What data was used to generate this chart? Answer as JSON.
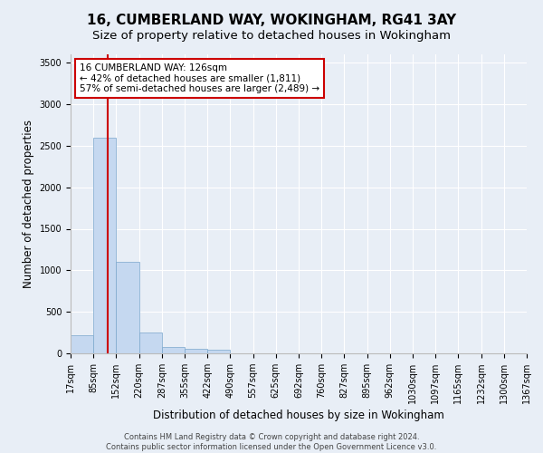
{
  "title_line1": "16, CUMBERLAND WAY, WOKINGHAM, RG41 3AY",
  "title_line2": "Size of property relative to detached houses in Wokingham",
  "xlabel": "Distribution of detached houses by size in Wokingham",
  "ylabel": "Number of detached properties",
  "footnote1": "Contains HM Land Registry data © Crown copyright and database right 2024.",
  "footnote2": "Contains public sector information licensed under the Open Government Licence v3.0.",
  "bar_values": [
    220,
    2600,
    1100,
    250,
    80,
    50,
    40,
    5,
    3,
    2,
    1,
    1,
    0,
    0,
    0,
    0,
    0,
    0,
    0,
    0
  ],
  "bin_labels": [
    "17sqm",
    "85sqm",
    "152sqm",
    "220sqm",
    "287sqm",
    "355sqm",
    "422sqm",
    "490sqm",
    "557sqm",
    "625sqm",
    "692sqm",
    "760sqm",
    "827sqm",
    "895sqm",
    "962sqm",
    "1030sqm",
    "1097sqm",
    "1165sqm",
    "1232sqm",
    "1300sqm",
    "1367sqm"
  ],
  "bar_color": "#c5d8f0",
  "bar_edge_color": "#7ba7cc",
  "annotation_text_line1": "16 CUMBERLAND WAY: 126sqm",
  "annotation_text_line2": "← 42% of detached houses are smaller (1,811)",
  "annotation_text_line3": "57% of semi-detached houses are larger (2,489) →",
  "red_line_color": "#cc0000",
  "annotation_box_facecolor": "#ffffff",
  "annotation_box_edgecolor": "#cc0000",
  "ylim": [
    0,
    3600
  ],
  "yticks": [
    0,
    500,
    1000,
    1500,
    2000,
    2500,
    3000,
    3500
  ],
  "bg_color": "#e8eef6",
  "plot_bg_color": "#e8eef6",
  "grid_color": "#ffffff",
  "title1_fontsize": 11,
  "title2_fontsize": 9.5,
  "xlabel_fontsize": 8.5,
  "ylabel_fontsize": 8.5,
  "tick_fontsize": 7,
  "footnote_fontsize": 6
}
